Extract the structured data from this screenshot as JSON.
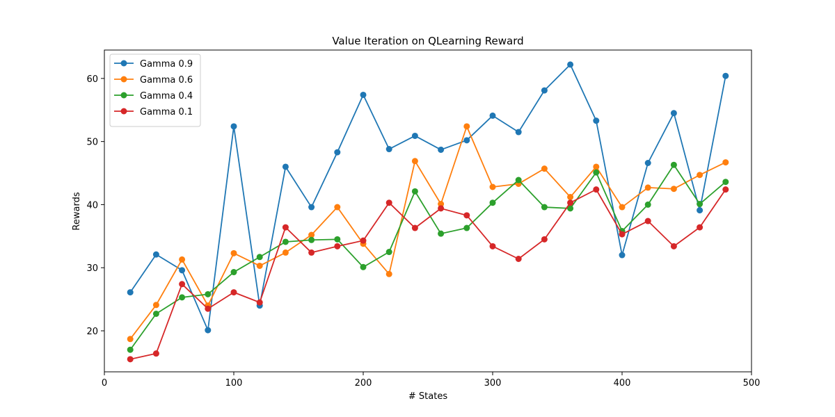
{
  "chart_data": {
    "type": "line",
    "title": "Value Iteration on QLearning Reward",
    "xlabel": "# States",
    "ylabel": "Rewards",
    "xlim": [
      0,
      500
    ],
    "ylim": [
      13.5,
      64.5
    ],
    "xticks": [
      0,
      100,
      200,
      300,
      400,
      500
    ],
    "yticks": [
      20,
      30,
      40,
      50,
      60
    ],
    "grid": false,
    "legend_position": "upper-left",
    "x": [
      20,
      40,
      60,
      80,
      100,
      120,
      140,
      160,
      180,
      200,
      220,
      240,
      260,
      280,
      300,
      320,
      340,
      360,
      380,
      400,
      420,
      440,
      460,
      480
    ],
    "series": [
      {
        "name": "Gamma 0.9",
        "color": "#1f77b4",
        "values": [
          26.1,
          32.1,
          29.6,
          20.1,
          52.4,
          24.0,
          46.0,
          39.6,
          48.3,
          57.4,
          48.8,
          50.9,
          48.7,
          50.2,
          54.1,
          51.5,
          58.1,
          62.2,
          53.3,
          32.0,
          46.6,
          54.5,
          39.1,
          60.4
        ]
      },
      {
        "name": "Gamma 0.6",
        "color": "#ff7f0e",
        "values": [
          18.7,
          24.1,
          31.3,
          24.0,
          32.3,
          30.3,
          32.4,
          35.2,
          39.6,
          33.8,
          29.0,
          46.9,
          40.1,
          52.4,
          42.8,
          43.3,
          45.7,
          41.2,
          46.0,
          39.6,
          42.7,
          42.5,
          44.7,
          46.7
        ]
      },
      {
        "name": "Gamma 0.4",
        "color": "#2ca02c",
        "values": [
          17.0,
          22.7,
          25.3,
          25.8,
          29.3,
          31.7,
          34.1,
          34.4,
          34.5,
          30.1,
          32.5,
          42.1,
          35.4,
          36.3,
          40.3,
          43.9,
          39.6,
          39.4,
          45.1,
          35.8,
          40.0,
          46.3,
          40.1,
          43.6
        ]
      },
      {
        "name": "Gamma 0.1",
        "color": "#d62728",
        "values": [
          15.5,
          16.4,
          27.4,
          23.5,
          26.1,
          24.5,
          36.4,
          32.4,
          33.4,
          34.3,
          40.3,
          36.3,
          39.4,
          38.3,
          33.4,
          31.4,
          34.5,
          40.3,
          42.4,
          35.3,
          37.4,
          33.4,
          36.4,
          42.4
        ]
      }
    ]
  }
}
